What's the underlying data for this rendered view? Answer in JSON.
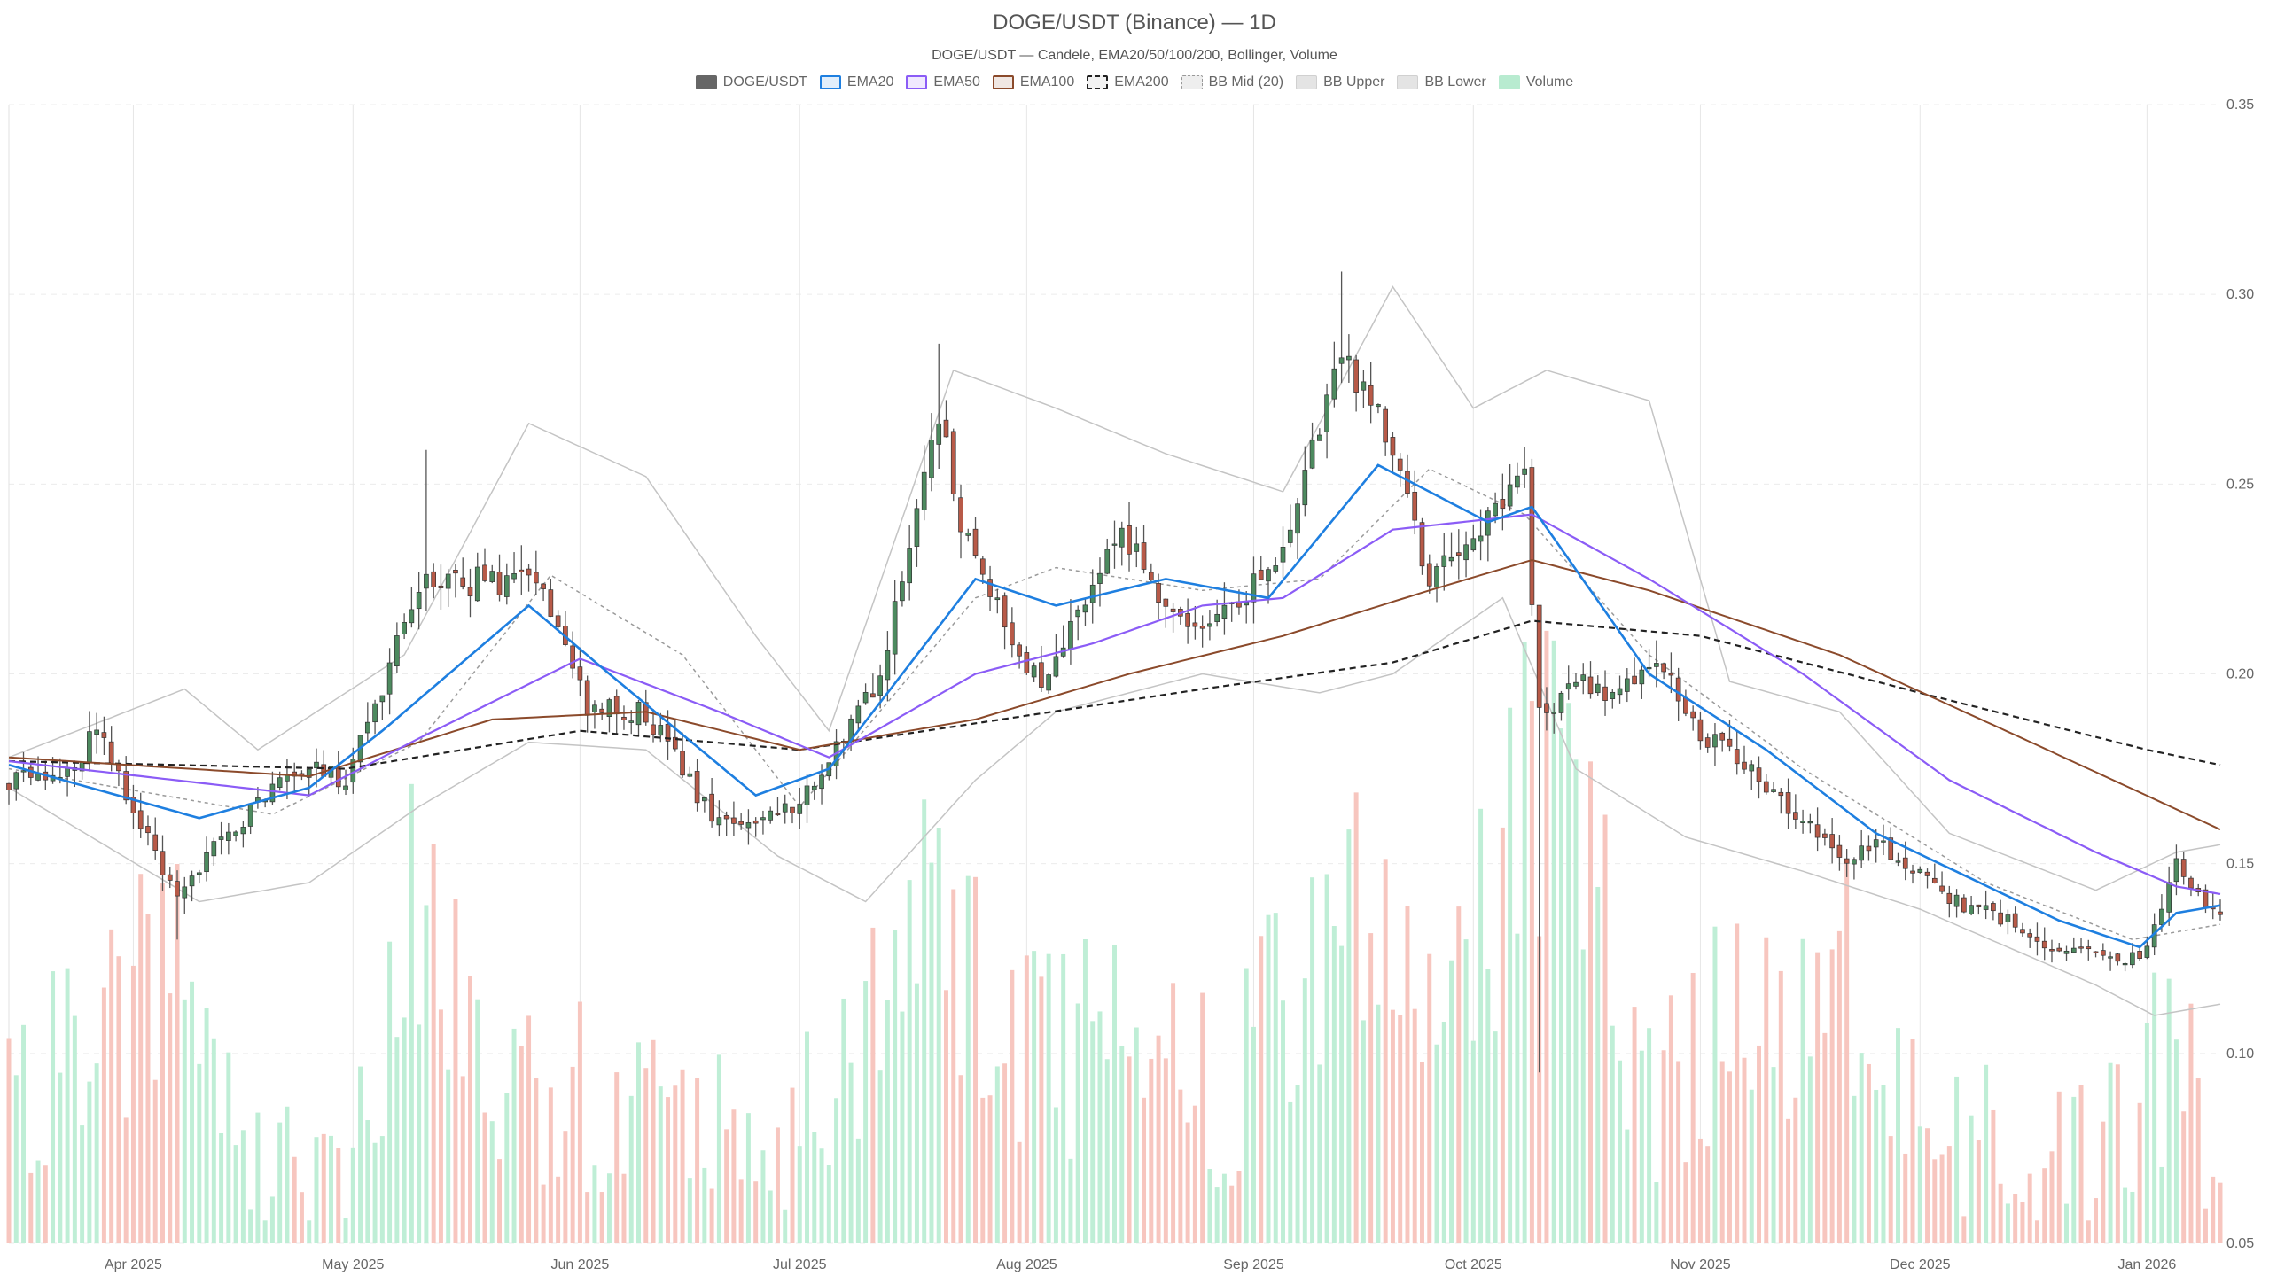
{
  "chart_data": {
    "type": "candlestick",
    "title": "DOGE/USDT (Binance) — 1D",
    "subtitle": "DOGE/USDT — Candele, EMA20/50/100/200, Bollinger, Volume",
    "ylim": [
      0.05,
      0.35
    ],
    "yticks": [
      "0.05",
      "0.10",
      "0.15",
      "0.20",
      "0.25",
      "0.30",
      "0.35"
    ],
    "xlim": [
      "2025-03-15",
      "2026-01-11"
    ],
    "xticks": [
      {
        "date": "2025-04-01",
        "label": "Apr 2025"
      },
      {
        "date": "2025-05-01",
        "label": "May 2025"
      },
      {
        "date": "2025-06-01",
        "label": "Jun 2025"
      },
      {
        "date": "2025-07-01",
        "label": "Jul 2025"
      },
      {
        "date": "2025-08-01",
        "label": "Aug 2025"
      },
      {
        "date": "2025-09-01",
        "label": "Sep 2025"
      },
      {
        "date": "2025-10-01",
        "label": "Oct 2025"
      },
      {
        "date": "2025-11-01",
        "label": "Nov 2025"
      },
      {
        "date": "2025-12-01",
        "label": "Dec 2025"
      },
      {
        "date": "2026-01-01",
        "label": "Jan 2026"
      }
    ],
    "grid": true,
    "legend_position": "top-center",
    "legend": [
      {
        "name": "DOGE/USDT",
        "color": "#666666",
        "style": "solid"
      },
      {
        "name": "EMA20",
        "color": "#1e7fe0",
        "style": "line"
      },
      {
        "name": "EMA50",
        "color": "#8b5cf6",
        "style": "line"
      },
      {
        "name": "EMA100",
        "color": "#8b4a2b",
        "style": "line"
      },
      {
        "name": "EMA200",
        "color": "#222222",
        "style": "dashed"
      },
      {
        "name": "BB Mid (20)",
        "color": "#999999",
        "style": "dotted"
      },
      {
        "name": "BB Upper",
        "color": "#bbbbbb",
        "style": "light"
      },
      {
        "name": "BB Lower",
        "color": "#bbbbbb",
        "style": "light"
      },
      {
        "name": "Volume",
        "color": "#b8ebd0",
        "style": "fill"
      }
    ],
    "colors": {
      "up": "#4d8a5f",
      "down": "#b85a48",
      "vol_up": "#bfeed6",
      "vol_down": "#f7c6bf"
    },
    "price_anchors": [
      [
        "2025-03-15",
        0.172
      ],
      [
        "2025-03-22",
        0.171
      ],
      [
        "2025-03-27",
        0.185
      ],
      [
        "2025-03-31",
        0.168
      ],
      [
        "2025-04-07",
        0.142
      ],
      [
        "2025-04-15",
        0.16
      ],
      [
        "2025-04-22",
        0.176
      ],
      [
        "2025-04-30",
        0.172
      ],
      [
        "2025-05-10",
        0.223
      ],
      [
        "2025-05-20",
        0.225
      ],
      [
        "2025-05-27",
        0.222
      ],
      [
        "2025-06-02",
        0.19
      ],
      [
        "2025-06-10",
        0.19
      ],
      [
        "2025-06-20",
        0.16
      ],
      [
        "2025-06-25",
        0.162
      ],
      [
        "2025-07-01",
        0.167
      ],
      [
        "2025-07-12",
        0.198
      ],
      [
        "2025-07-20",
        0.27
      ],
      [
        "2025-07-23",
        0.238
      ],
      [
        "2025-08-03",
        0.196
      ],
      [
        "2025-08-10",
        0.222
      ],
      [
        "2025-08-14",
        0.238
      ],
      [
        "2025-08-20",
        0.215
      ],
      [
        "2025-08-28",
        0.215
      ],
      [
        "2025-09-05",
        0.235
      ],
      [
        "2025-09-13",
        0.285
      ],
      [
        "2025-09-18",
        0.268
      ],
      [
        "2025-09-25",
        0.226
      ],
      [
        "2025-10-02",
        0.24
      ],
      [
        "2025-10-08",
        0.255
      ],
      [
        "2025-10-10",
        0.188
      ],
      [
        "2025-10-15",
        0.198
      ],
      [
        "2025-10-21",
        0.195
      ],
      [
        "2025-10-26",
        0.203
      ],
      [
        "2025-11-01",
        0.185
      ],
      [
        "2025-11-07",
        0.176
      ],
      [
        "2025-11-14",
        0.162
      ],
      [
        "2025-11-20",
        0.152
      ],
      [
        "2025-11-25",
        0.155
      ],
      [
        "2025-11-30",
        0.148
      ],
      [
        "2025-12-05",
        0.14
      ],
      [
        "2025-12-12",
        0.136
      ],
      [
        "2025-12-20",
        0.128
      ],
      [
        "2025-12-27",
        0.124
      ],
      [
        "2026-01-01",
        0.127
      ],
      [
        "2026-01-05",
        0.15
      ],
      [
        "2026-01-09",
        0.138
      ],
      [
        "2026-01-11",
        0.137
      ]
    ],
    "notable_wicks": [
      {
        "date": "2025-04-07",
        "low": 0.13
      },
      {
        "date": "2025-05-11",
        "high": 0.259
      },
      {
        "date": "2025-07-20",
        "high": 0.287
      },
      {
        "date": "2025-09-13",
        "high": 0.306
      },
      {
        "date": "2025-10-10",
        "low": 0.095
      },
      {
        "date": "2026-01-05",
        "high": 0.155
      }
    ],
    "ema20_anchors": [
      [
        "2025-03-15",
        0.176
      ],
      [
        "2025-04-10",
        0.162
      ],
      [
        "2025-04-25",
        0.17
      ],
      [
        "2025-05-05",
        0.185
      ],
      [
        "2025-05-25",
        0.218
      ],
      [
        "2025-06-05",
        0.2
      ],
      [
        "2025-06-25",
        0.168
      ],
      [
        "2025-07-05",
        0.175
      ],
      [
        "2025-07-25",
        0.225
      ],
      [
        "2025-08-05",
        0.218
      ],
      [
        "2025-08-20",
        0.225
      ],
      [
        "2025-09-03",
        0.22
      ],
      [
        "2025-09-18",
        0.255
      ],
      [
        "2025-10-03",
        0.24
      ],
      [
        "2025-10-09",
        0.244
      ],
      [
        "2025-10-25",
        0.2
      ],
      [
        "2025-11-10",
        0.18
      ],
      [
        "2025-11-25",
        0.158
      ],
      [
        "2025-12-20",
        0.135
      ],
      [
        "2025-12-31",
        0.128
      ],
      [
        "2026-01-05",
        0.137
      ],
      [
        "2026-01-11",
        0.139
      ]
    ],
    "ema50_anchors": [
      [
        "2025-03-15",
        0.177
      ],
      [
        "2025-04-25",
        0.168
      ],
      [
        "2025-05-10",
        0.183
      ],
      [
        "2025-06-01",
        0.204
      ],
      [
        "2025-06-20",
        0.19
      ],
      [
        "2025-07-05",
        0.178
      ],
      [
        "2025-07-25",
        0.2
      ],
      [
        "2025-08-10",
        0.208
      ],
      [
        "2025-08-25",
        0.218
      ],
      [
        "2025-09-05",
        0.22
      ],
      [
        "2025-09-20",
        0.238
      ],
      [
        "2025-10-09",
        0.242
      ],
      [
        "2025-10-25",
        0.225
      ],
      [
        "2025-11-15",
        0.2
      ],
      [
        "2025-12-05",
        0.172
      ],
      [
        "2025-12-25",
        0.153
      ],
      [
        "2026-01-05",
        0.144
      ],
      [
        "2026-01-11",
        0.142
      ]
    ],
    "ema100_anchors": [
      [
        "2025-03-15",
        0.178
      ],
      [
        "2025-04-25",
        0.173
      ],
      [
        "2025-05-20",
        0.188
      ],
      [
        "2025-06-10",
        0.19
      ],
      [
        "2025-07-01",
        0.18
      ],
      [
        "2025-07-25",
        0.188
      ],
      [
        "2025-08-15",
        0.2
      ],
      [
        "2025-09-05",
        0.21
      ],
      [
        "2025-09-25",
        0.222
      ],
      [
        "2025-10-09",
        0.23
      ],
      [
        "2025-10-25",
        0.222
      ],
      [
        "2025-11-20",
        0.205
      ],
      [
        "2025-12-15",
        0.183
      ],
      [
        "2026-01-11",
        0.159
      ]
    ],
    "ema200_anchors": [
      [
        "2025-03-15",
        0.177
      ],
      [
        "2025-04-30",
        0.175
      ],
      [
        "2025-06-01",
        0.185
      ],
      [
        "2025-07-01",
        0.18
      ],
      [
        "2025-08-01",
        0.189
      ],
      [
        "2025-08-25",
        0.196
      ],
      [
        "2025-09-20",
        0.203
      ],
      [
        "2025-10-09",
        0.214
      ],
      [
        "2025-11-01",
        0.21
      ],
      [
        "2025-12-01",
        0.195
      ],
      [
        "2026-01-01",
        0.18
      ],
      [
        "2026-01-11",
        0.176
      ]
    ],
    "bb_upper_anchors": [
      [
        "2025-03-15",
        0.178
      ],
      [
        "2025-04-08",
        0.196
      ],
      [
        "2025-04-18",
        0.18
      ],
      [
        "2025-05-08",
        0.205
      ],
      [
        "2025-05-25",
        0.266
      ],
      [
        "2025-06-10",
        0.252
      ],
      [
        "2025-06-25",
        0.21
      ],
      [
        "2025-07-05",
        0.185
      ],
      [
        "2025-07-22",
        0.28
      ],
      [
        "2025-08-05",
        0.27
      ],
      [
        "2025-08-20",
        0.258
      ],
      [
        "2025-09-05",
        0.248
      ],
      [
        "2025-09-20",
        0.302
      ],
      [
        "2025-10-01",
        0.27
      ],
      [
        "2025-10-11",
        0.28
      ],
      [
        "2025-10-25",
        0.272
      ],
      [
        "2025-11-05",
        0.198
      ],
      [
        "2025-11-20",
        0.19
      ],
      [
        "2025-12-05",
        0.158
      ],
      [
        "2025-12-25",
        0.143
      ],
      [
        "2026-01-05",
        0.153
      ],
      [
        "2026-01-11",
        0.155
      ]
    ],
    "bb_lower_anchors": [
      [
        "2025-03-15",
        0.17
      ],
      [
        "2025-04-10",
        0.14
      ],
      [
        "2025-04-25",
        0.145
      ],
      [
        "2025-05-10",
        0.165
      ],
      [
        "2025-05-25",
        0.182
      ],
      [
        "2025-06-10",
        0.18
      ],
      [
        "2025-06-28",
        0.152
      ],
      [
        "2025-07-10",
        0.14
      ],
      [
        "2025-07-25",
        0.172
      ],
      [
        "2025-08-05",
        0.19
      ],
      [
        "2025-08-25",
        0.2
      ],
      [
        "2025-09-10",
        0.195
      ],
      [
        "2025-09-20",
        0.2
      ],
      [
        "2025-10-05",
        0.22
      ],
      [
        "2025-10-15",
        0.175
      ],
      [
        "2025-10-30",
        0.157
      ],
      [
        "2025-11-15",
        0.148
      ],
      [
        "2025-12-01",
        0.138
      ],
      [
        "2025-12-25",
        0.118
      ],
      [
        "2026-01-02",
        0.11
      ],
      [
        "2026-01-11",
        0.113
      ]
    ],
    "bb_mid_anchors": [
      [
        "2025-03-15",
        0.175
      ],
      [
        "2025-04-20",
        0.163
      ],
      [
        "2025-05-10",
        0.182
      ],
      [
        "2025-05-28",
        0.226
      ],
      [
        "2025-06-15",
        0.205
      ],
      [
        "2025-07-01",
        0.165
      ],
      [
        "2025-07-25",
        0.22
      ],
      [
        "2025-08-05",
        0.228
      ],
      [
        "2025-08-25",
        0.222
      ],
      [
        "2025-09-10",
        0.225
      ],
      [
        "2025-09-25",
        0.254
      ],
      [
        "2025-10-08",
        0.242
      ],
      [
        "2025-10-25",
        0.205
      ],
      [
        "2025-11-15",
        0.175
      ],
      [
        "2025-12-10",
        0.145
      ],
      [
        "2025-12-30",
        0.13
      ],
      [
        "2026-01-11",
        0.134
      ]
    ],
    "volume_anchors": [
      [
        "2025-03-15",
        0.085
      ],
      [
        "2025-03-25",
        0.104
      ],
      [
        "2025-04-07",
        0.13
      ],
      [
        "2025-04-18",
        0.07
      ],
      [
        "2025-04-28",
        0.068
      ],
      [
        "2025-05-10",
        0.138
      ],
      [
        "2025-05-20",
        0.095
      ],
      [
        "2025-06-01",
        0.088
      ],
      [
        "2025-06-15",
        0.08
      ],
      [
        "2025-06-28",
        0.075
      ],
      [
        "2025-07-10",
        0.11
      ],
      [
        "2025-07-20",
        0.135
      ],
      [
        "2025-08-01",
        0.098
      ],
      [
        "2025-08-15",
        0.11
      ],
      [
        "2025-08-28",
        0.085
      ],
      [
        "2025-09-13",
        0.145
      ],
      [
        "2025-09-25",
        0.1
      ],
      [
        "2025-10-10",
        0.175
      ],
      [
        "2025-10-15",
        0.15
      ],
      [
        "2025-10-25",
        0.09
      ],
      [
        "2025-11-08",
        0.11
      ],
      [
        "2025-11-20",
        0.12
      ],
      [
        "2025-12-01",
        0.08
      ],
      [
        "2025-12-20",
        0.07
      ],
      [
        "2026-01-05",
        0.1
      ],
      [
        "2026-01-11",
        0.07
      ]
    ]
  }
}
